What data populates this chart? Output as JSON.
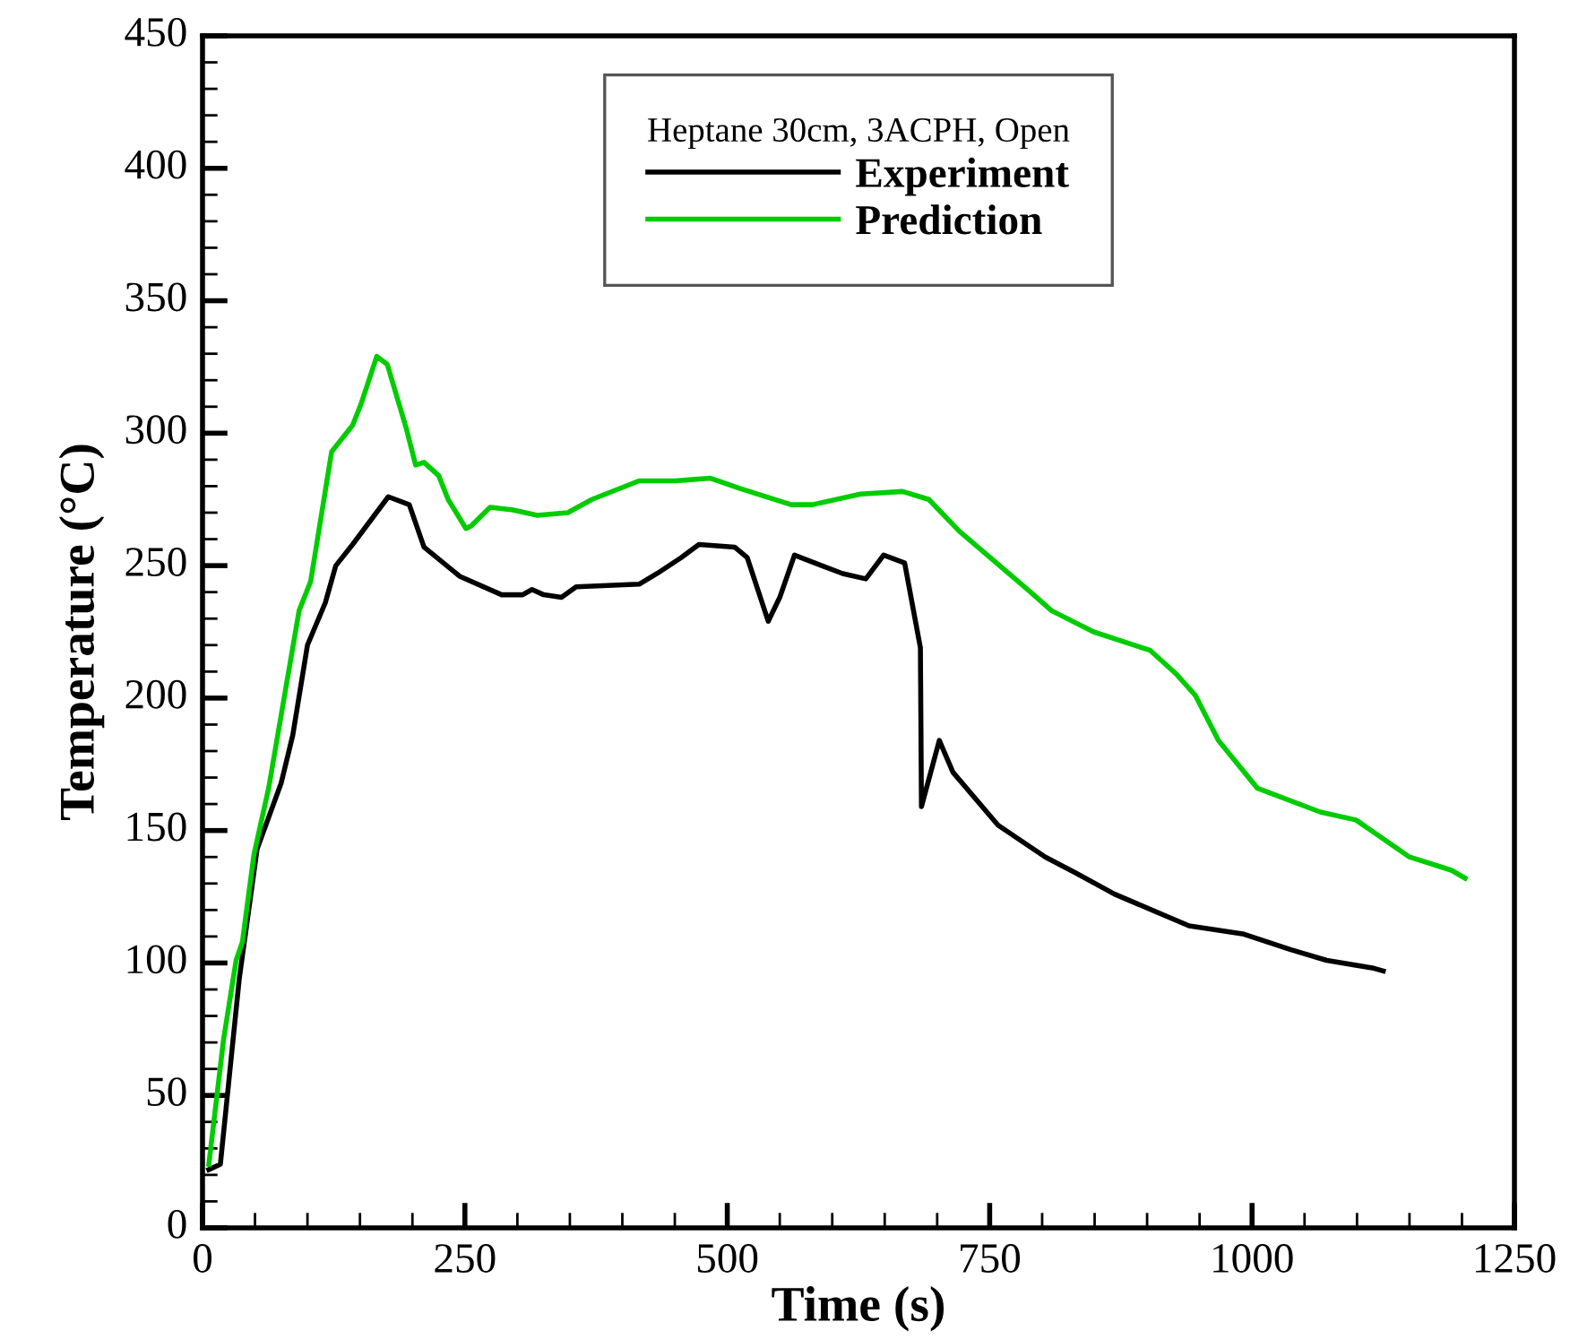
{
  "chart_data": {
    "type": "line",
    "xlabel": "Time (s)",
    "ylabel": "Temperature (°C)",
    "legend_title": "Heptane 30cm, 3ACPH, Open",
    "legend": "top",
    "grid": false,
    "marker": "none",
    "line_style": "solid",
    "xlim": [
      0,
      1250
    ],
    "xticks": [
      0,
      250,
      500,
      750,
      1000,
      1250
    ],
    "ylim": [
      0,
      450
    ],
    "yticks": [
      0,
      50,
      100,
      150,
      200,
      250,
      300,
      350,
      400,
      450
    ],
    "series": [
      {
        "name": "Experiment",
        "color": "#000000",
        "x": [
          6,
          17,
          35,
          52,
          75,
          86,
          100,
          117,
          127,
          143,
          177,
          197,
          211,
          245,
          285,
          305,
          314,
          325,
          342,
          356,
          416,
          433,
          456,
          473,
          507,
          519,
          539,
          550,
          564,
          590,
          610,
          632,
          649,
          669,
          684,
          685,
          702,
          715,
          758,
          803,
          832,
          869,
          940,
          991,
          1037,
          1071,
          1116,
          1125
        ],
        "values": [
          22,
          24,
          94,
          143,
          168,
          186,
          220,
          236,
          250,
          258,
          276,
          273,
          257,
          246,
          239,
          239,
          241,
          239,
          238,
          242,
          243,
          247,
          253,
          258,
          257,
          253,
          229,
          238,
          254,
          250,
          247,
          245,
          254,
          251,
          219,
          159,
          184,
          172,
          152,
          140,
          134,
          126,
          114,
          111,
          105,
          101,
          98,
          97
        ]
      },
      {
        "name": "Prediction",
        "color": "#00cc00",
        "x": [
          6,
          20,
          32,
          38,
          49,
          63,
          92,
          103,
          123,
          143,
          151,
          166,
          176,
          194,
          203,
          211,
          225,
          234,
          251,
          256,
          274,
          296,
          319,
          348,
          371,
          416,
          450,
          484,
          513,
          561,
          581,
          627,
          667,
          692,
          721,
          786,
          809,
          849,
          903,
          928,
          946,
          968,
          1005,
          1065,
          1099,
          1150,
          1190,
          1203
        ],
        "values": [
          24,
          71,
          101,
          108,
          141,
          166,
          233,
          244,
          293,
          303,
          311,
          329,
          326,
          302,
          288,
          289,
          284,
          275,
          264,
          265,
          272,
          271,
          269,
          270,
          275,
          282,
          282,
          283,
          279,
          273,
          273,
          277,
          278,
          275,
          263,
          241,
          233,
          225,
          218,
          209,
          201,
          184,
          166,
          157,
          154,
          140,
          135,
          132
        ]
      }
    ]
  }
}
